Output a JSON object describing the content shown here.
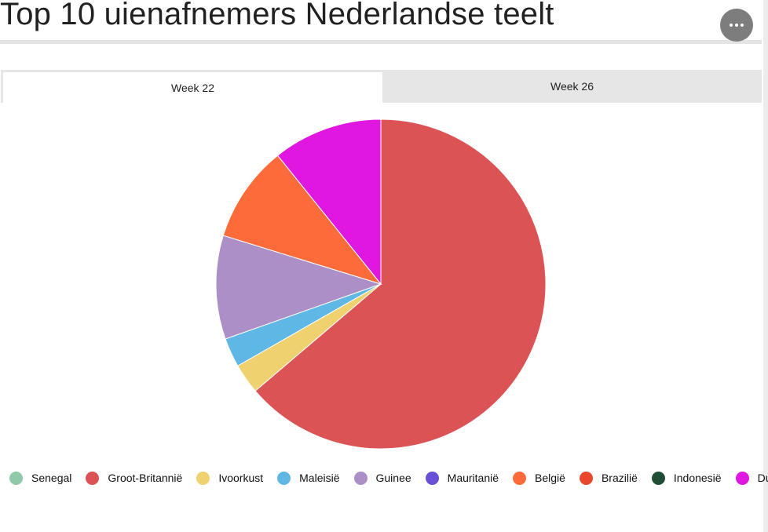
{
  "header": {
    "title": "Top 10 uienafnemers Nederlandse teelt",
    "menu_icon": "more-horizontal-icon"
  },
  "tabs": [
    {
      "label": "Week 22",
      "active": true
    },
    {
      "label": "Week 26",
      "active": false
    }
  ],
  "chart_data": {
    "type": "pie",
    "categories": [
      "Senegal",
      "Groot-Britannië",
      "Ivoorkust",
      "Maleisië",
      "Guinee",
      "Mauritanië",
      "België",
      "Brazilië",
      "Indonesië",
      "Duitsland"
    ],
    "values": [
      0,
      64.6,
      3.0,
      2.9,
      10.3,
      0,
      9.6,
      0,
      0,
      10.9
    ],
    "colors": [
      "#8fc9a8",
      "#dc5356",
      "#f0d16f",
      "#5eb7e5",
      "#ab8fc6",
      "#6a4fd8",
      "#fd6b3a",
      "#e8472c",
      "#1f4d36",
      "#df17e0"
    ],
    "legend_position": "bottom",
    "start_angle_deg": 0,
    "direction": "clockwise"
  }
}
